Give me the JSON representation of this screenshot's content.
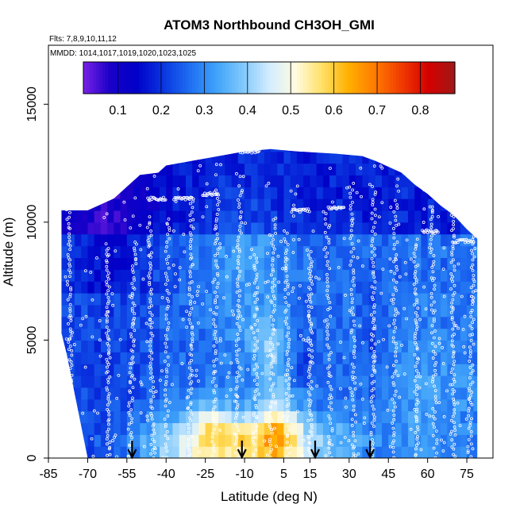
{
  "chart_data": {
    "type": "heatmap",
    "title": "ATOM3 Northbound CH3OH_GMI",
    "subtitle": "Flts: 7,8,9,10,11,12",
    "annotation": "MMDD: 1014,1017,1019,1020,1023,1025",
    "xlabel": "Latitude (deg N)",
    "ylabel": "Altitude (m)",
    "xlim": [
      -85,
      85
    ],
    "ylim": [
      0,
      17500
    ],
    "x_ticks": [
      -85,
      -70,
      -55,
      -40,
      -25,
      -10,
      5,
      15,
      30,
      45,
      60,
      75
    ],
    "y_ticks": [
      0,
      5000,
      10000,
      15000
    ],
    "colorbar": {
      "range": [
        0.02,
        0.88
      ],
      "ticks": [
        0.1,
        0.2,
        0.3,
        0.4,
        0.5,
        0.6,
        0.7,
        0.8
      ],
      "colors": [
        "#7a22e6",
        "#1a00c8",
        "#0000c8",
        "#0a35e0",
        "#1e6ef2",
        "#3fa2fa",
        "#7fc8fb",
        "#d2ecff",
        "#fffbe0",
        "#ffe066",
        "#ffb000",
        "#ff7a00",
        "#f03a00",
        "#d40000",
        "#a01818"
      ]
    },
    "arrows_at_latitude": [
      -53,
      -11,
      17,
      38
    ],
    "curtain_bounds": {
      "lat": [
        -80,
        -78,
        -70,
        -60,
        -50,
        -43,
        -40,
        -25,
        -10,
        0,
        10,
        25,
        35,
        40,
        50,
        55,
        60,
        65,
        70,
        75,
        79
      ],
      "top_altitude_m": [
        10500,
        10500,
        10500,
        11000,
        12000,
        12100,
        12400,
        12700,
        13000,
        13100,
        13000,
        12900,
        12800,
        12600,
        12100,
        11600,
        11200,
        10700,
        10300,
        9700,
        9300
      ],
      "bottom_altitude_m": [
        5300,
        4400,
        0,
        0,
        0,
        0,
        0,
        0,
        0,
        0,
        0,
        0,
        0,
        0,
        0,
        0,
        0,
        0,
        0,
        0,
        0
      ]
    },
    "grid": false,
    "colorbar_position": "top-inside"
  }
}
